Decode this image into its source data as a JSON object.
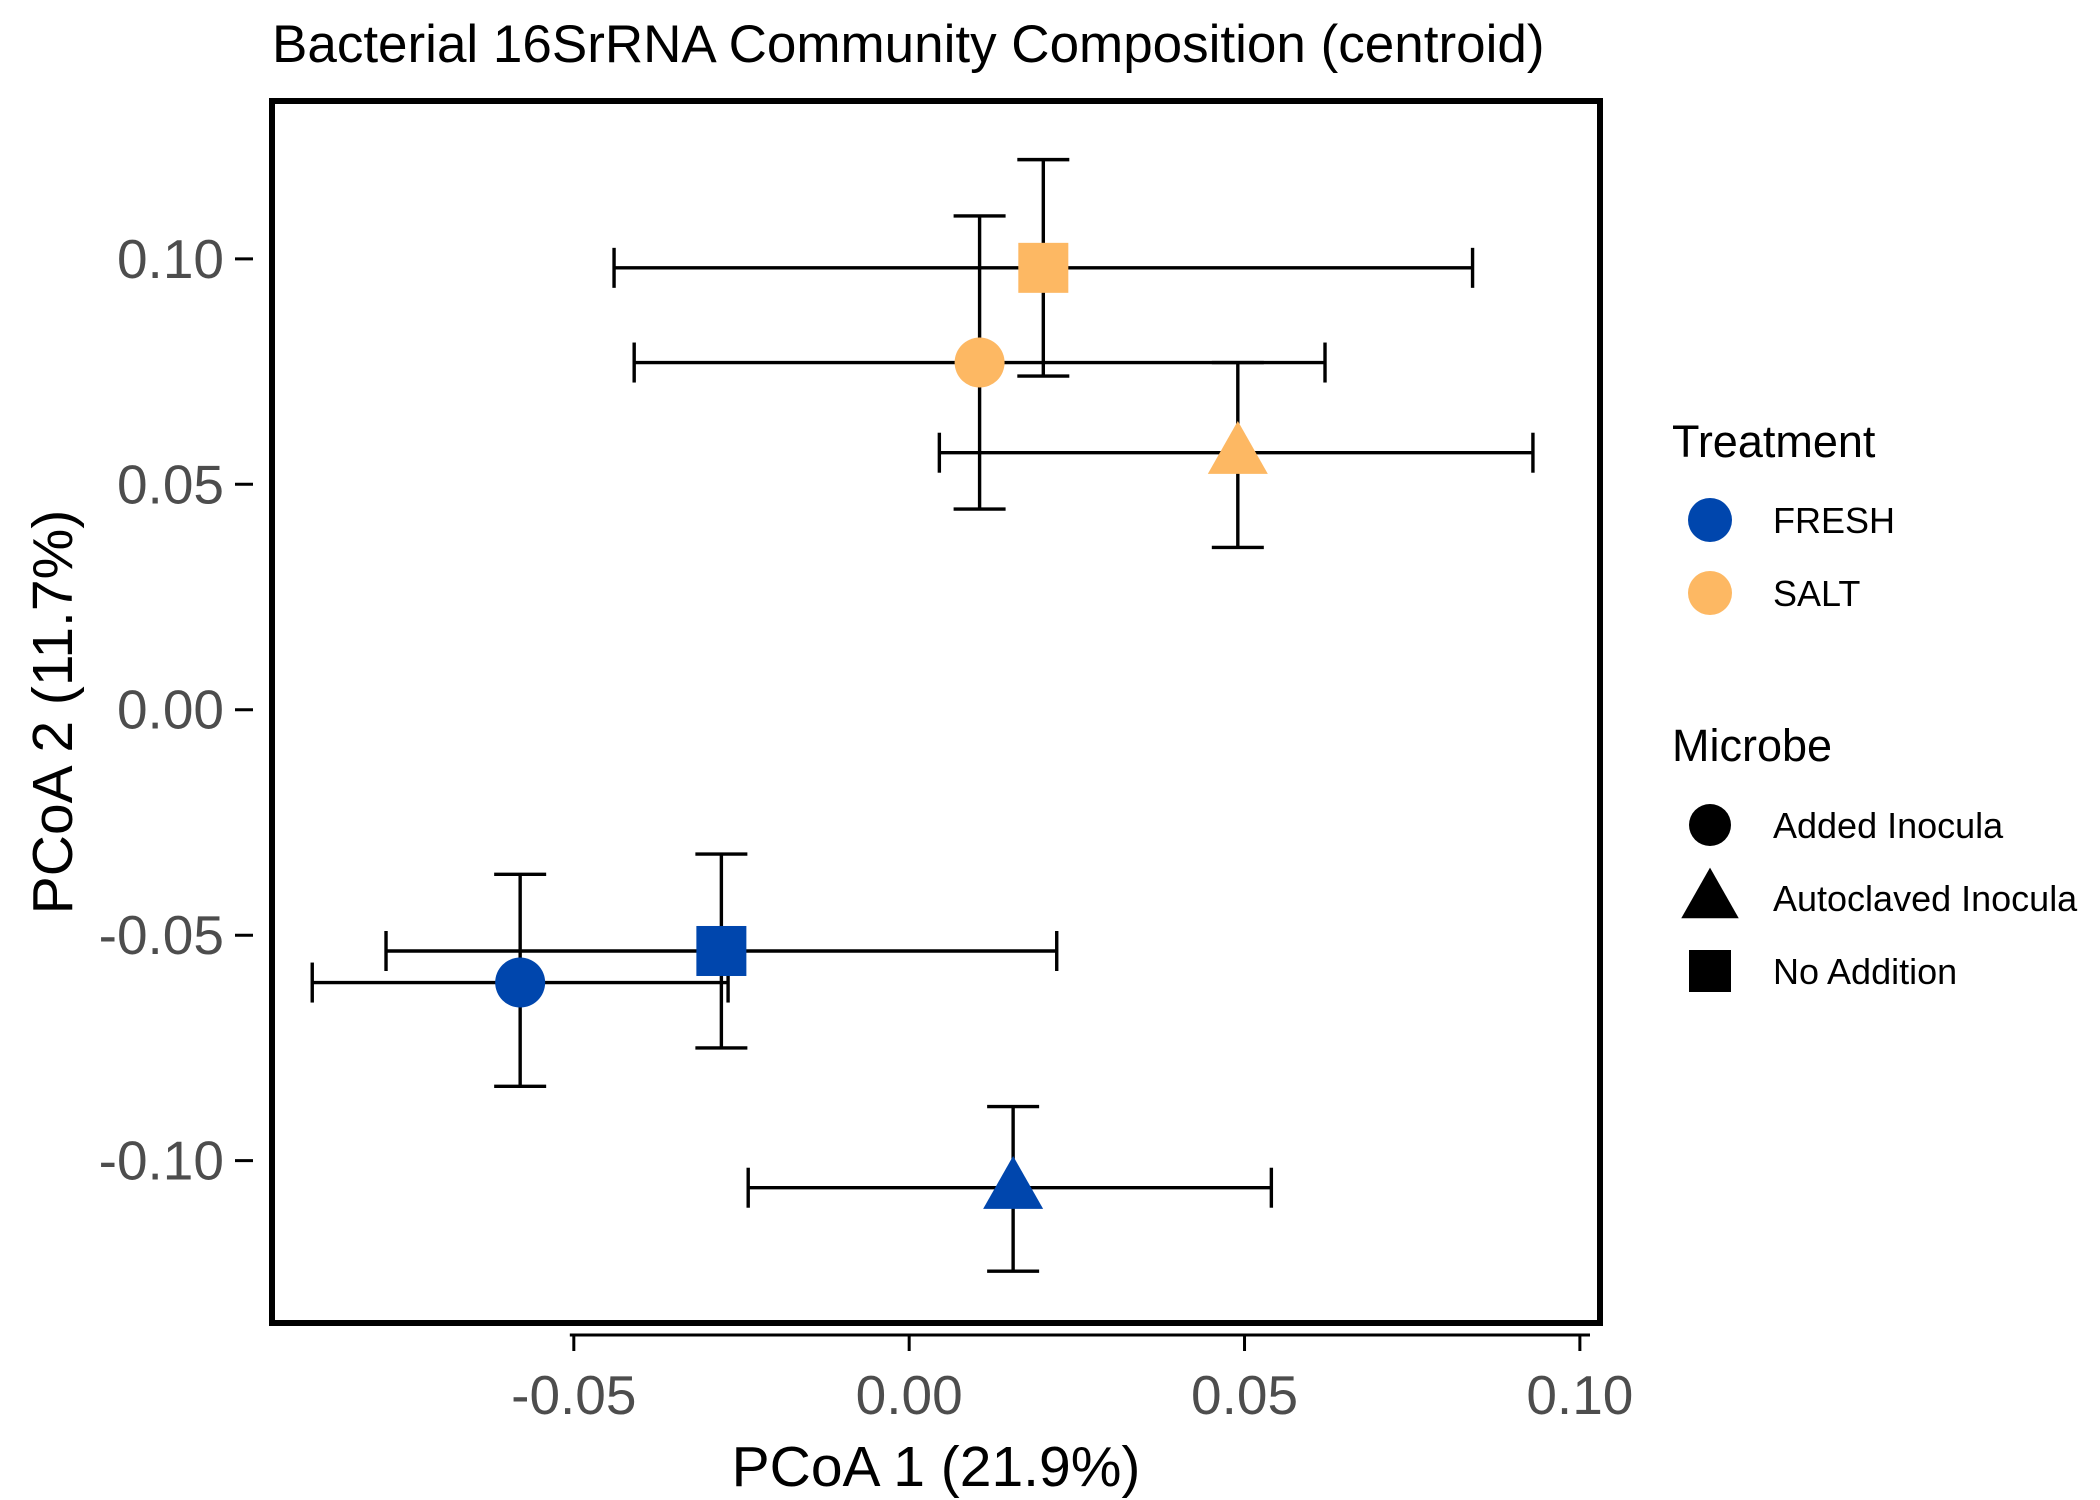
{
  "chart_data": {
    "type": "scatter",
    "title": "Bacterial 16SrRNA Community Composition (centroid)",
    "xlabel": "PCoA 1 (21.9%)",
    "ylabel": "PCoA 2 (11.7%)",
    "xlim": [
      -0.095,
      0.103
    ],
    "ylim": [
      -0.136,
      0.135
    ],
    "x_ticks": [
      -0.05,
      0.0,
      0.05,
      0.1
    ],
    "x_tick_labels": [
      "-0.05",
      "0.00",
      "0.05",
      "0.10"
    ],
    "y_ticks": [
      -0.1,
      -0.05,
      0.0,
      0.05,
      0.1
    ],
    "y_tick_labels": [
      "-0.10",
      "-0.05",
      "0.00",
      "0.05",
      "0.10"
    ],
    "grid": false,
    "legend_placement": "right",
    "treatment_colors": {
      "FRESH": "#0046ad",
      "SALT": "#fdb863"
    },
    "points": [
      {
        "treatment": "SALT",
        "microbe": "No Addition",
        "x": 0.02,
        "y": 0.098,
        "xmin": -0.044,
        "xmax": 0.084,
        "ymin": 0.074,
        "ymax": 0.122
      },
      {
        "treatment": "SALT",
        "microbe": "Added Inocula",
        "x": 0.0105,
        "y": 0.077,
        "xmin": -0.041,
        "xmax": 0.062,
        "ymin": 0.0445,
        "ymax": 0.1095
      },
      {
        "treatment": "SALT",
        "microbe": "Autoclaved Inocula",
        "x": 0.049,
        "y": 0.057,
        "xmin": 0.0045,
        "xmax": 0.093,
        "ymin": 0.036,
        "ymax": 0.077
      },
      {
        "treatment": "FRESH",
        "microbe": "No Addition",
        "x": -0.028,
        "y": -0.0535,
        "xmin": -0.078,
        "xmax": 0.022,
        "ymin": -0.075,
        "ymax": -0.032
      },
      {
        "treatment": "FRESH",
        "microbe": "Added Inocula",
        "x": -0.058,
        "y": -0.0605,
        "xmin": -0.089,
        "xmax": -0.027,
        "ymin": -0.0835,
        "ymax": -0.0365
      },
      {
        "treatment": "FRESH",
        "microbe": "Autoclaved Inocula",
        "x": 0.0155,
        "y": -0.106,
        "xmin": -0.024,
        "xmax": 0.054,
        "ymin": -0.1245,
        "ymax": -0.088
      }
    ],
    "legend": {
      "treatment": {
        "title": "Treatment",
        "items": [
          {
            "label": "FRESH",
            "color": "#0046ad"
          },
          {
            "label": "SALT",
            "color": "#fdb863"
          }
        ]
      },
      "microbe": {
        "title": "Microbe",
        "items": [
          {
            "label": "Added Inocula",
            "shape": "circle"
          },
          {
            "label": "Autoclaved Inocula",
            "shape": "triangle"
          },
          {
            "label": "No Addition",
            "shape": "square"
          }
        ]
      }
    }
  }
}
